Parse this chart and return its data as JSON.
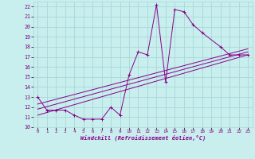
{
  "xlabel": "Windchill (Refroidissement éolien,°C)",
  "bg_color": "#c8eeee",
  "grid_color": "#a8d8d8",
  "line_color": "#880088",
  "xlim": [
    -0.5,
    23.5
  ],
  "ylim": [
    10,
    22.5
  ],
  "xticks": [
    0,
    1,
    2,
    3,
    4,
    5,
    6,
    7,
    8,
    9,
    10,
    11,
    12,
    13,
    14,
    15,
    16,
    17,
    18,
    19,
    20,
    21,
    22,
    23
  ],
  "yticks": [
    10,
    11,
    12,
    13,
    14,
    15,
    16,
    17,
    18,
    19,
    20,
    21,
    22
  ],
  "series1_x": [
    0,
    1,
    2,
    3,
    4,
    5,
    6,
    7,
    8,
    9,
    10,
    11,
    12,
    13,
    14,
    15,
    16,
    17,
    18,
    20,
    21,
    22,
    23
  ],
  "series1_y": [
    13,
    11.7,
    11.7,
    11.7,
    11.2,
    10.8,
    10.8,
    10.8,
    12.0,
    11.2,
    15.2,
    17.5,
    17.2,
    22.2,
    14.5,
    21.7,
    21.5,
    20.2,
    19.4,
    18.0,
    17.2,
    17.2,
    17.2
  ],
  "series2_x": [
    0,
    23
  ],
  "series2_y": [
    11.2,
    17.2
  ],
  "series3_x": [
    0,
    23
  ],
  "series3_y": [
    11.8,
    17.5
  ],
  "series4_x": [
    0,
    23
  ],
  "series4_y": [
    12.3,
    17.8
  ]
}
